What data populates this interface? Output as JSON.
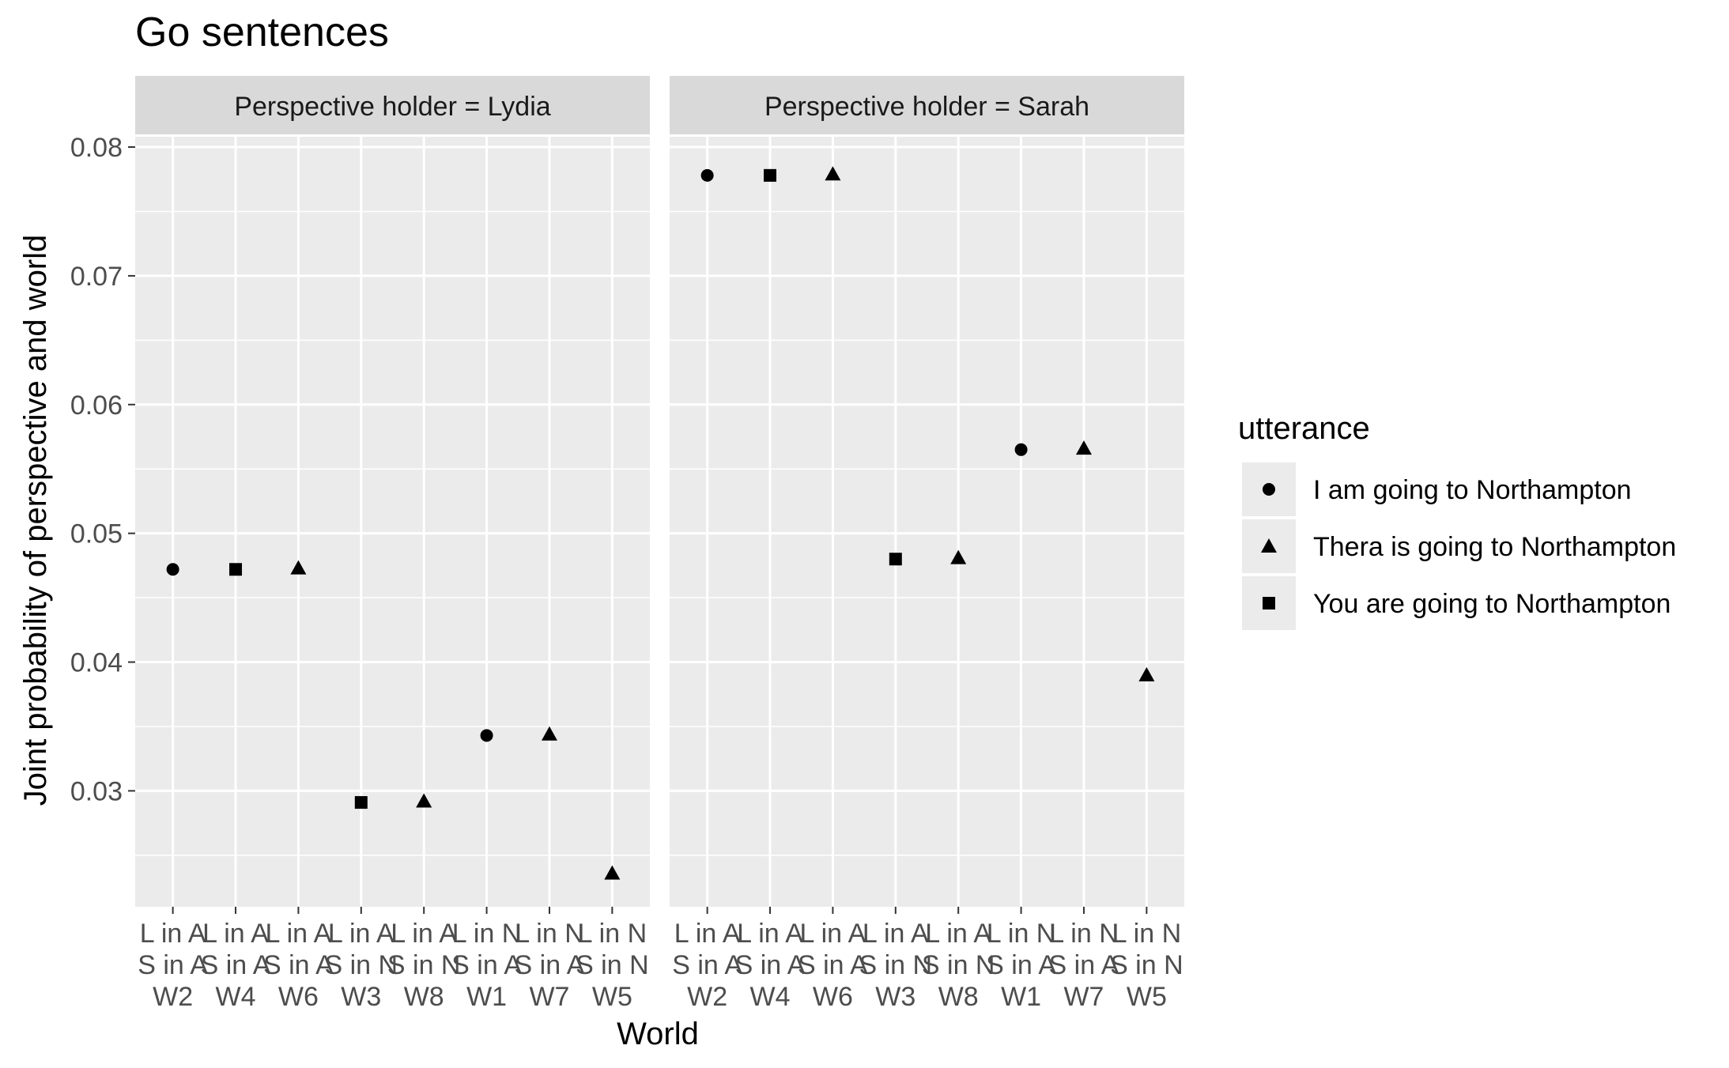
{
  "chart_data": {
    "type": "scatter",
    "title": "Go sentences",
    "xlabel": "World",
    "ylabel": "Joint probability of perspective and world",
    "ylim": [
      0.021,
      0.0808
    ],
    "yticks": [
      "0.03",
      "0.04",
      "0.05",
      "0.06",
      "0.07",
      "0.08"
    ],
    "grid": true,
    "legend_position": "right",
    "legend": {
      "title": "utterance",
      "items": [
        {
          "label": "I am going to Northampton",
          "shape": "circle"
        },
        {
          "label": "Thera is going to Northampton",
          "shape": "triangle"
        },
        {
          "label": "You are going to Northampton",
          "shape": "square"
        }
      ]
    },
    "categories": [
      {
        "line1": "L in A",
        "line2": "S in A",
        "line3": "W2"
      },
      {
        "line1": "L in A",
        "line2": "S in A",
        "line3": "W4"
      },
      {
        "line1": "L in A",
        "line2": "S in A",
        "line3": "W6"
      },
      {
        "line1": "L in A",
        "line2": "S in N",
        "line3": "W3"
      },
      {
        "line1": "L in A",
        "line2": "S in N",
        "line3": "W8"
      },
      {
        "line1": "L in N",
        "line2": "S in A",
        "line3": "W1"
      },
      {
        "line1": "L in N",
        "line2": "S in A",
        "line3": "W7"
      },
      {
        "line1": "L in N",
        "line2": "S in N",
        "line3": "W5"
      }
    ],
    "panels": [
      {
        "label": "Perspective holder = Lydia",
        "points": [
          {
            "x": "W2",
            "y": 0.0472,
            "shape": "circle"
          },
          {
            "x": "W4",
            "y": 0.0472,
            "shape": "square"
          },
          {
            "x": "W6",
            "y": 0.0473,
            "shape": "triangle"
          },
          {
            "x": "W3",
            "y": 0.0291,
            "shape": "square"
          },
          {
            "x": "W8",
            "y": 0.0292,
            "shape": "triangle"
          },
          {
            "x": "W1",
            "y": 0.0343,
            "shape": "circle"
          },
          {
            "x": "W7",
            "y": 0.0344,
            "shape": "triangle"
          },
          {
            "x": "W5",
            "y": 0.0236,
            "shape": "triangle"
          }
        ]
      },
      {
        "label": "Perspective holder = Sarah",
        "points": [
          {
            "x": "W2",
            "y": 0.0778,
            "shape": "circle"
          },
          {
            "x": "W4",
            "y": 0.0778,
            "shape": "square"
          },
          {
            "x": "W6",
            "y": 0.0779,
            "shape": "triangle"
          },
          {
            "x": "W3",
            "y": 0.048,
            "shape": "square"
          },
          {
            "x": "W8",
            "y": 0.0481,
            "shape": "triangle"
          },
          {
            "x": "W1",
            "y": 0.0565,
            "shape": "circle"
          },
          {
            "x": "W7",
            "y": 0.0566,
            "shape": "triangle"
          },
          {
            "x": "W5",
            "y": 0.039,
            "shape": "triangle"
          }
        ]
      }
    ]
  }
}
